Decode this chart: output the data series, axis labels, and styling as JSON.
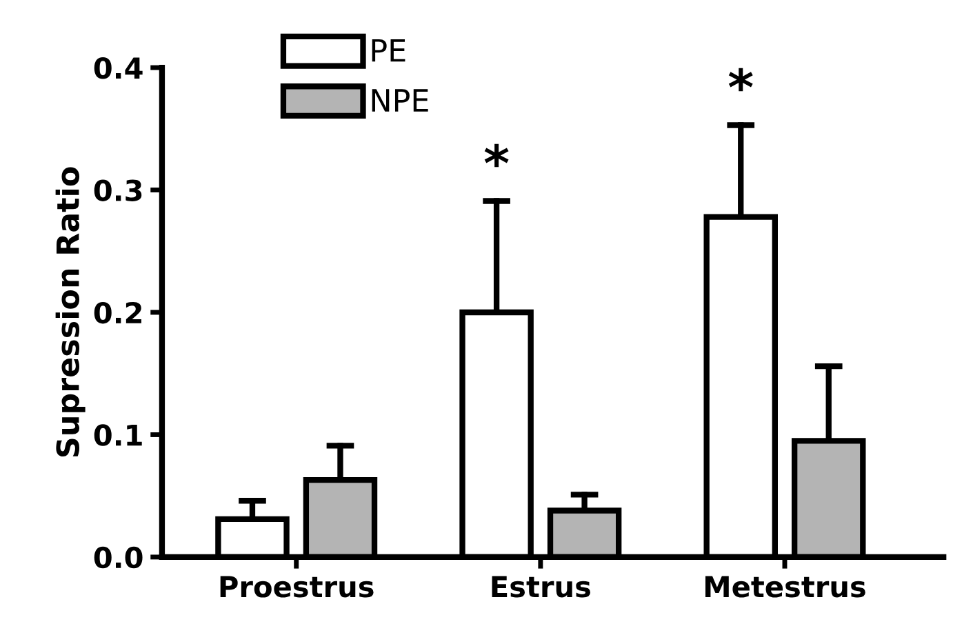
{
  "chart_data": {
    "type": "bar",
    "ylabel": "Supression Ratio",
    "categories": [
      "Proestrus",
      "Estrus",
      "Metestrus"
    ],
    "series": [
      {
        "name": "PE",
        "color": "#ffffff",
        "values": [
          0.031,
          0.2,
          0.278
        ],
        "value_labels": [
          null,
          "*",
          "*"
        ],
        "errors": [
          [
            0.031,
            0.046
          ],
          [
            0.2,
            0.291
          ],
          [
            0.278,
            0.353
          ]
        ]
      },
      {
        "name": "NPE",
        "color": "#b4b4b4",
        "values": [
          0.063,
          0.038,
          0.095
        ],
        "errors": [
          [
            0.063,
            0.091
          ],
          [
            0.038,
            0.051
          ],
          [
            0.095,
            0.156
          ]
        ]
      }
    ],
    "ylim": [
      0,
      0.4
    ],
    "yticks": [
      "0.0",
      0.1,
      0.2,
      0.3,
      0.4
    ],
    "legend": "top left",
    "grid": false
  }
}
